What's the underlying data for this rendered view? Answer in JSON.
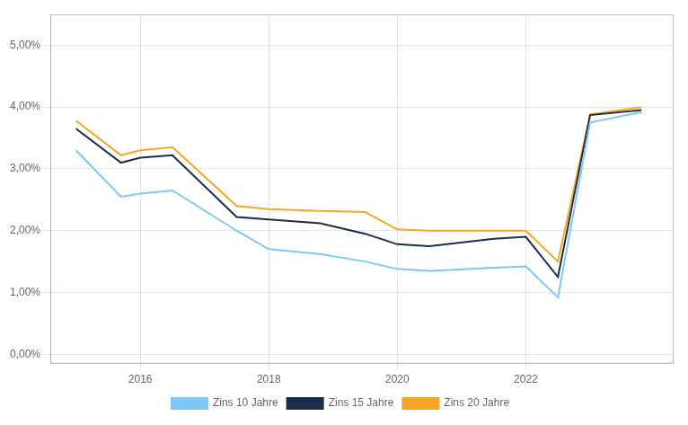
{
  "chart_data": {
    "type": "line",
    "x": [
      2015,
      2015.7,
      2016,
      2016.5,
      2017.5,
      2018,
      2018.8,
      2019.5,
      2020,
      2020.5,
      2021.5,
      2022,
      2022.5,
      2023,
      2023.8
    ],
    "series": [
      {
        "name": "Zins 10 Jahre",
        "color": "#7ec8f5",
        "values": [
          3.3,
          2.55,
          2.6,
          2.65,
          2.0,
          1.7,
          1.62,
          1.5,
          1.38,
          1.35,
          1.4,
          1.42,
          0.92,
          3.75,
          3.92
        ]
      },
      {
        "name": "Zins 15 Jahre",
        "color": "#1c2b4a",
        "values": [
          3.65,
          3.1,
          3.18,
          3.22,
          2.22,
          2.18,
          2.12,
          1.95,
          1.78,
          1.75,
          1.87,
          1.9,
          1.25,
          3.87,
          3.95
        ]
      },
      {
        "name": "Zins 20 Jahre",
        "color": "#f5a623",
        "values": [
          3.78,
          3.22,
          3.3,
          3.35,
          2.4,
          2.35,
          2.32,
          2.3,
          2.02,
          2.0,
          2.0,
          2.0,
          1.5,
          3.88,
          4.0
        ]
      }
    ],
    "xlim": [
      2014.6,
      2024.3
    ],
    "xticks": [
      2016,
      2018,
      2020,
      2022
    ],
    "ylim": [
      -0.15,
      5.5
    ],
    "yticks": [
      {
        "value": 0.0,
        "label": "0,00%"
      },
      {
        "value": 1.0,
        "label": "1,00%"
      },
      {
        "value": 2.0,
        "label": "2,00%"
      },
      {
        "value": 3.0,
        "label": "3,00%"
      },
      {
        "value": 4.0,
        "label": "4,00%"
      },
      {
        "value": 5.0,
        "label": "5,00%"
      }
    ],
    "grid": true,
    "legend": "bottom"
  }
}
